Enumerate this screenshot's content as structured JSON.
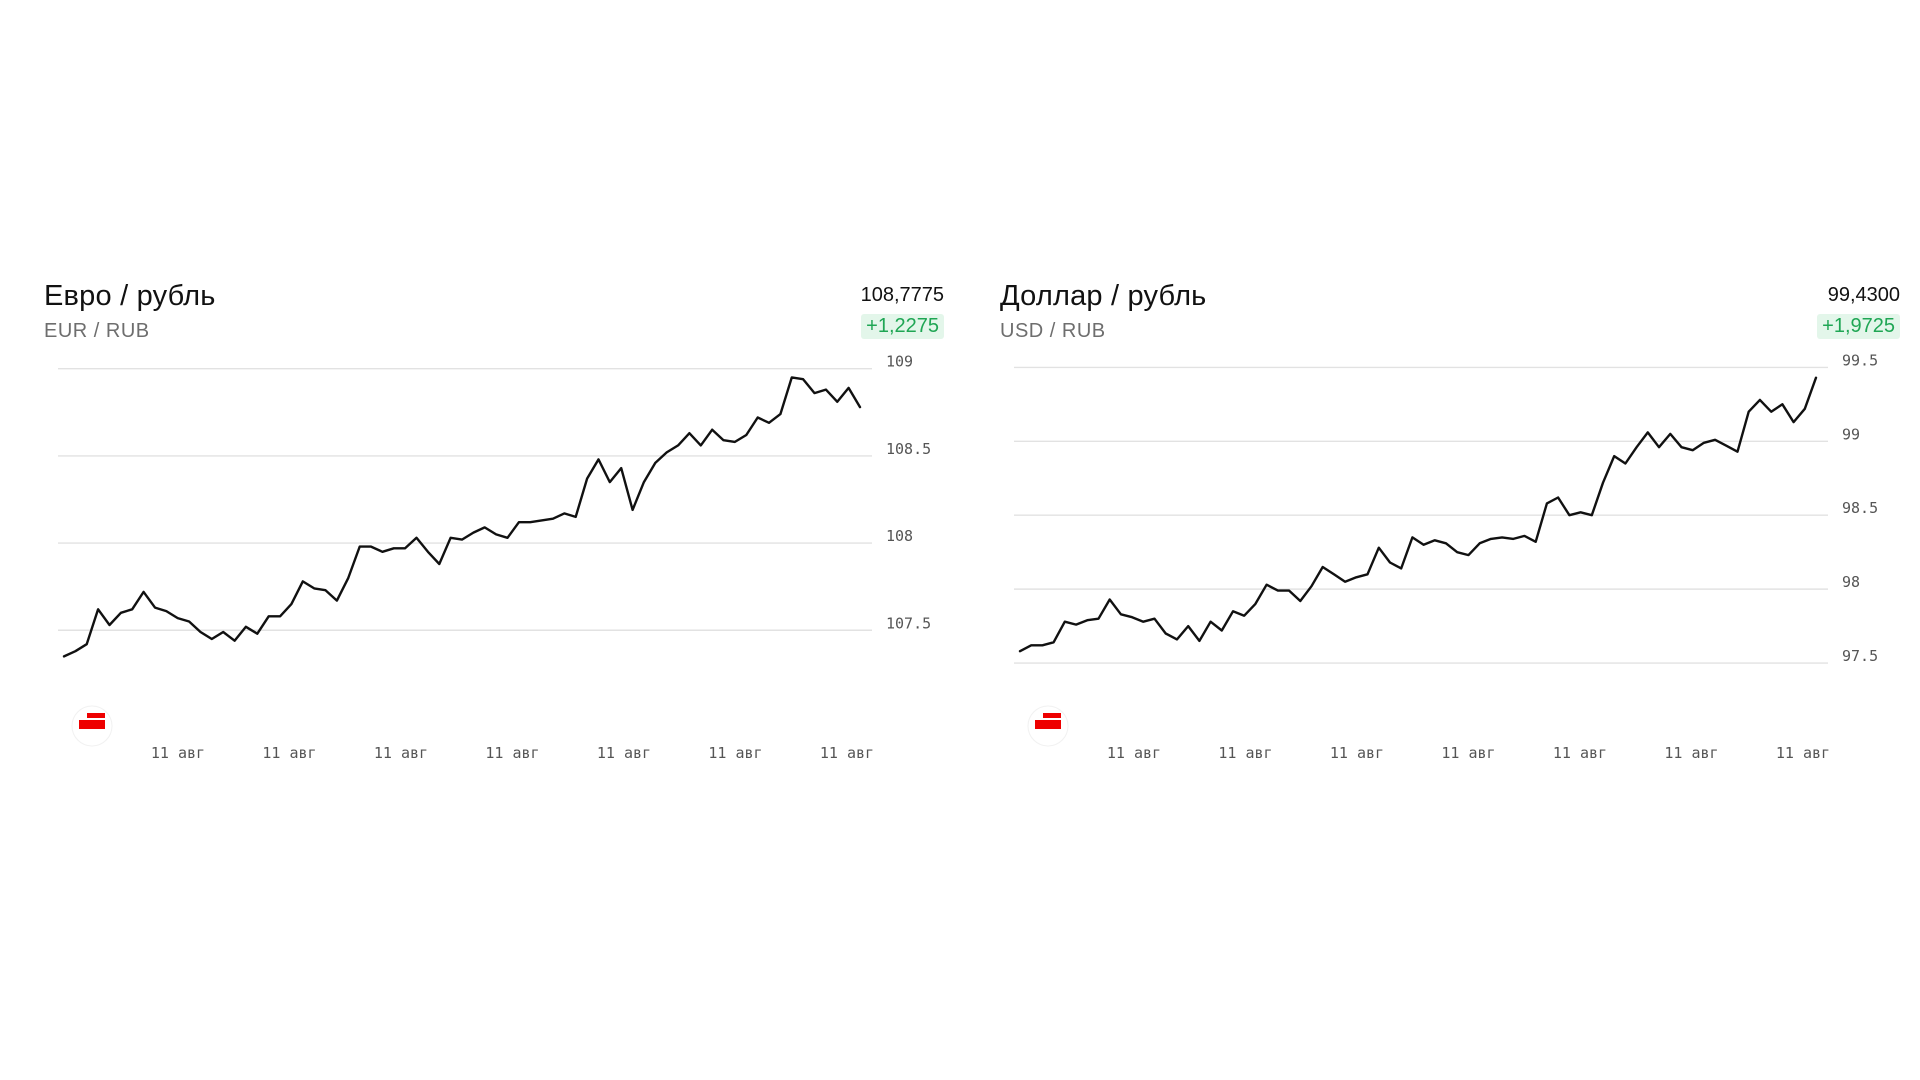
{
  "panels": [
    {
      "title": "Евро / рубль",
      "subtitle": "EUR / RUB",
      "price": "108,7775",
      "change": "+1,2275",
      "colors": {
        "line": "#111111",
        "change_text": "#1fa654",
        "change_bg": "#e3f6ea",
        "logo": "#ee0000"
      },
      "icons": [
        "bank-logo-icon"
      ]
    },
    {
      "title": "Доллар / рубль",
      "subtitle": "USD / RUB",
      "price": "99,4300",
      "change": "+1,9725",
      "colors": {
        "line": "#111111",
        "change_text": "#1fa654",
        "change_bg": "#e3f6ea",
        "logo": "#ee0000"
      },
      "icons": [
        "bank-logo-icon"
      ]
    }
  ],
  "chart_data": [
    {
      "type": "line",
      "title": "Евро / рубль",
      "ylim": [
        107.1,
        109.05
      ],
      "yticks": [
        109,
        108.5,
        108,
        107.5
      ],
      "ytick_labels": [
        "109",
        "108.5",
        "108",
        "107.5"
      ],
      "xtick_labels": [
        "11 авг",
        "11 авг",
        "11 авг",
        "11 авг",
        "11 авг",
        "11 авг",
        "11 авг"
      ],
      "grid": true,
      "values": [
        107.35,
        107.38,
        107.42,
        107.62,
        107.53,
        107.6,
        107.62,
        107.72,
        107.63,
        107.61,
        107.57,
        107.55,
        107.49,
        107.45,
        107.49,
        107.44,
        107.52,
        107.48,
        107.58,
        107.58,
        107.65,
        107.78,
        107.74,
        107.73,
        107.67,
        107.8,
        107.98,
        107.98,
        107.95,
        107.97,
        107.97,
        108.03,
        107.95,
        107.88,
        108.03,
        108.02,
        108.06,
        108.09,
        108.05,
        108.03,
        108.12,
        108.12,
        108.13,
        108.14,
        108.17,
        108.15,
        108.37,
        108.48,
        108.35,
        108.43,
        108.19,
        108.35,
        108.46,
        108.52,
        108.56,
        108.63,
        108.56,
        108.65,
        108.59,
        108.58,
        108.62,
        108.72,
        108.69,
        108.74,
        108.95,
        108.94,
        108.86,
        108.88,
        108.81,
        108.89,
        108.78
      ]
    },
    {
      "type": "line",
      "title": "Доллар / рубль",
      "ylim": [
        97.25,
        99.55
      ],
      "yticks": [
        99.5,
        99,
        98.5,
        98,
        97.5
      ],
      "ytick_labels": [
        "99.5",
        "99",
        "98.5",
        "98",
        "97.5"
      ],
      "xtick_labels": [
        "11 авг",
        "11 авг",
        "11 авг",
        "11 авг",
        "11 авг",
        "11 авг",
        "11 авг"
      ],
      "grid": true,
      "values": [
        97.58,
        97.62,
        97.62,
        97.64,
        97.78,
        97.76,
        97.79,
        97.8,
        97.93,
        97.83,
        97.81,
        97.78,
        97.8,
        97.7,
        97.66,
        97.75,
        97.65,
        97.78,
        97.72,
        97.85,
        97.82,
        97.9,
        98.03,
        97.99,
        97.99,
        97.92,
        98.02,
        98.15,
        98.1,
        98.05,
        98.08,
        98.1,
        98.28,
        98.18,
        98.14,
        98.35,
        98.3,
        98.33,
        98.31,
        98.25,
        98.23,
        98.31,
        98.34,
        98.35,
        98.34,
        98.36,
        98.32,
        98.58,
        98.62,
        98.5,
        98.52,
        98.5,
        98.72,
        98.9,
        98.85,
        98.96,
        99.06,
        98.96,
        99.05,
        98.96,
        98.94,
        98.99,
        99.01,
        98.97,
        98.93,
        99.2,
        99.28,
        99.2,
        99.25,
        99.13,
        99.22,
        99.43
      ]
    }
  ]
}
